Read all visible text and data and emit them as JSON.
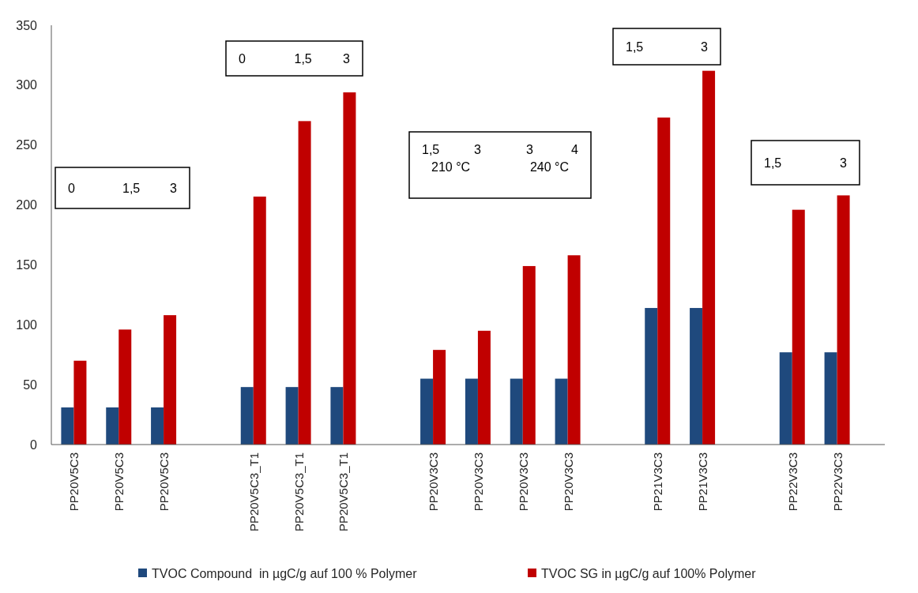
{
  "chart_data": {
    "type": "bar",
    "categories": [
      "PP20V5C3",
      "PP20V5C3",
      "PP20V5C3",
      null,
      "PP20V5C3_T1",
      "PP20V5C3_T1",
      "PP20V5C3_T1",
      null,
      "PP20V3C3",
      "PP20V3C3",
      "PP20V3C3",
      "PP20V3C3",
      null,
      "PP21V3C3",
      "PP21V3C3",
      null,
      "PP22V3C3",
      "PP22V3C3"
    ],
    "series": [
      {
        "name": "TVOC Compound  in µgC/g auf 100 % Polymer",
        "color": "#1f497d",
        "values": [
          31,
          31,
          31,
          null,
          48,
          48,
          48,
          null,
          55,
          55,
          55,
          55,
          null,
          114,
          114,
          null,
          77,
          77
        ]
      },
      {
        "name": "TVOC SG in µgC/g auf 100% Polymer",
        "color": "#c00000",
        "values": [
          70,
          96,
          108,
          null,
          207,
          270,
          294,
          null,
          79,
          95,
          149,
          158,
          null,
          273,
          312,
          null,
          196,
          208
        ]
      }
    ],
    "ylim": [
      0,
      350
    ],
    "yticks": [
      0,
      50,
      100,
      150,
      200,
      250,
      300,
      350
    ],
    "legend": "bottom",
    "annotations": [
      "0      1,5      3",
      "0      1,5      3",
      "1,5      3      3      4\n210 °C      240 °C",
      "1,5      3",
      "1,5      3"
    ]
  }
}
